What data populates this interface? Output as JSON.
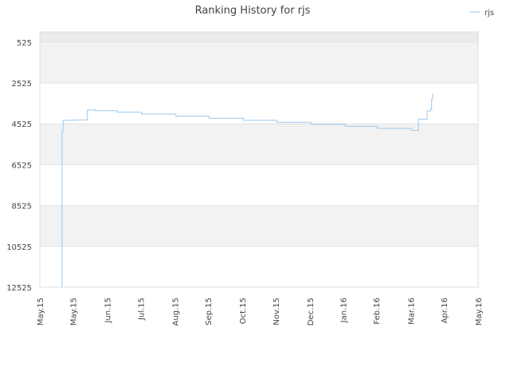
{
  "chart_data": {
    "type": "line",
    "title": "Ranking History for rjs",
    "xlabel": "",
    "ylabel": "",
    "y_inverted": true,
    "ylim": [
      12525,
      25
    ],
    "y_ticks": [
      525,
      2525,
      4525,
      6525,
      8525,
      10525,
      12525
    ],
    "x_tick_labels": [
      "May.15",
      "May.15",
      "Jun.15",
      "Jul.15",
      "Aug.15",
      "Sep.15",
      "Oct.15",
      "Nov.15",
      "Dec.15",
      "Jan.16",
      "Feb.16",
      "Mar.16",
      "Apr.16",
      "May.16"
    ],
    "x_ticks": [
      "2015-05-01",
      "2015-05-31",
      "2015-07-01",
      "2015-07-31",
      "2015-08-31",
      "2015-09-30",
      "2015-10-31",
      "2015-11-30",
      "2015-12-31",
      "2016-01-30",
      "2016-02-29",
      "2016-03-31",
      "2016-04-30",
      "2016-05-31"
    ],
    "xlim": [
      "2015-05-01",
      "2016-05-31"
    ],
    "grid": true,
    "legend_position": "top-right",
    "series": [
      {
        "name": "rjs",
        "color": "#9ac8ee",
        "points": [
          [
            "2015-05-21",
            12525
          ],
          [
            "2015-05-21",
            4900
          ],
          [
            "2015-05-22",
            4350
          ],
          [
            "2015-06-01",
            4330
          ],
          [
            "2015-06-11",
            4330
          ],
          [
            "2015-06-13",
            3850
          ],
          [
            "2015-06-20",
            3880
          ],
          [
            "2015-07-10",
            3950
          ],
          [
            "2015-08-01",
            4050
          ],
          [
            "2015-09-01",
            4150
          ],
          [
            "2015-10-01",
            4250
          ],
          [
            "2015-11-01",
            4350
          ],
          [
            "2015-12-01",
            4450
          ],
          [
            "2016-01-01",
            4550
          ],
          [
            "2016-02-01",
            4650
          ],
          [
            "2016-03-01",
            4750
          ],
          [
            "2016-04-01",
            4850
          ],
          [
            "2016-04-07",
            4880
          ],
          [
            "2016-04-07",
            4300
          ],
          [
            "2016-04-15",
            4250
          ],
          [
            "2016-04-15",
            3900
          ],
          [
            "2016-04-18",
            3800
          ],
          [
            "2016-04-19",
            3300
          ],
          [
            "2016-04-20",
            3050
          ]
        ]
      }
    ]
  }
}
